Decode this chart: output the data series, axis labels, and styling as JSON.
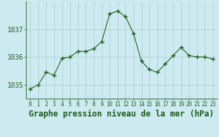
{
  "x": [
    0,
    1,
    2,
    3,
    4,
    5,
    6,
    7,
    8,
    9,
    10,
    11,
    12,
    13,
    14,
    15,
    16,
    17,
    18,
    19,
    20,
    21,
    22,
    23
  ],
  "y": [
    1034.85,
    1035.0,
    1035.45,
    1035.35,
    1035.95,
    1036.0,
    1036.2,
    1036.2,
    1036.3,
    1036.55,
    1037.55,
    1037.65,
    1037.45,
    1036.85,
    1035.85,
    1035.55,
    1035.45,
    1035.75,
    1036.05,
    1036.35,
    1036.05,
    1036.0,
    1036.0,
    1035.92
  ],
  "line_color": "#1a5c1a",
  "marker": "+",
  "marker_size": 4,
  "bg_color": "#cdeaf0",
  "grid_color": "#b0cfd6",
  "title": "Graphe pression niveau de la mer (hPa)",
  "yticks": [
    1035,
    1036,
    1037
  ],
  "xtick_labels": [
    "0",
    "1",
    "2",
    "3",
    "4",
    "5",
    "6",
    "7",
    "8",
    "9",
    "10",
    "11",
    "12",
    "13",
    "14",
    "15",
    "16",
    "17",
    "18",
    "19",
    "20",
    "21",
    "22",
    "23"
  ],
  "ylim": [
    1034.5,
    1038.0
  ],
  "xlim": [
    -0.5,
    23.5
  ],
  "title_fontsize": 8.5,
  "tick_fontsize": 7,
  "tick_color": "#1a5c1a",
  "title_color": "#1a5c1a",
  "title_fontweight": "bold",
  "spine_color": "#3a7a3a"
}
